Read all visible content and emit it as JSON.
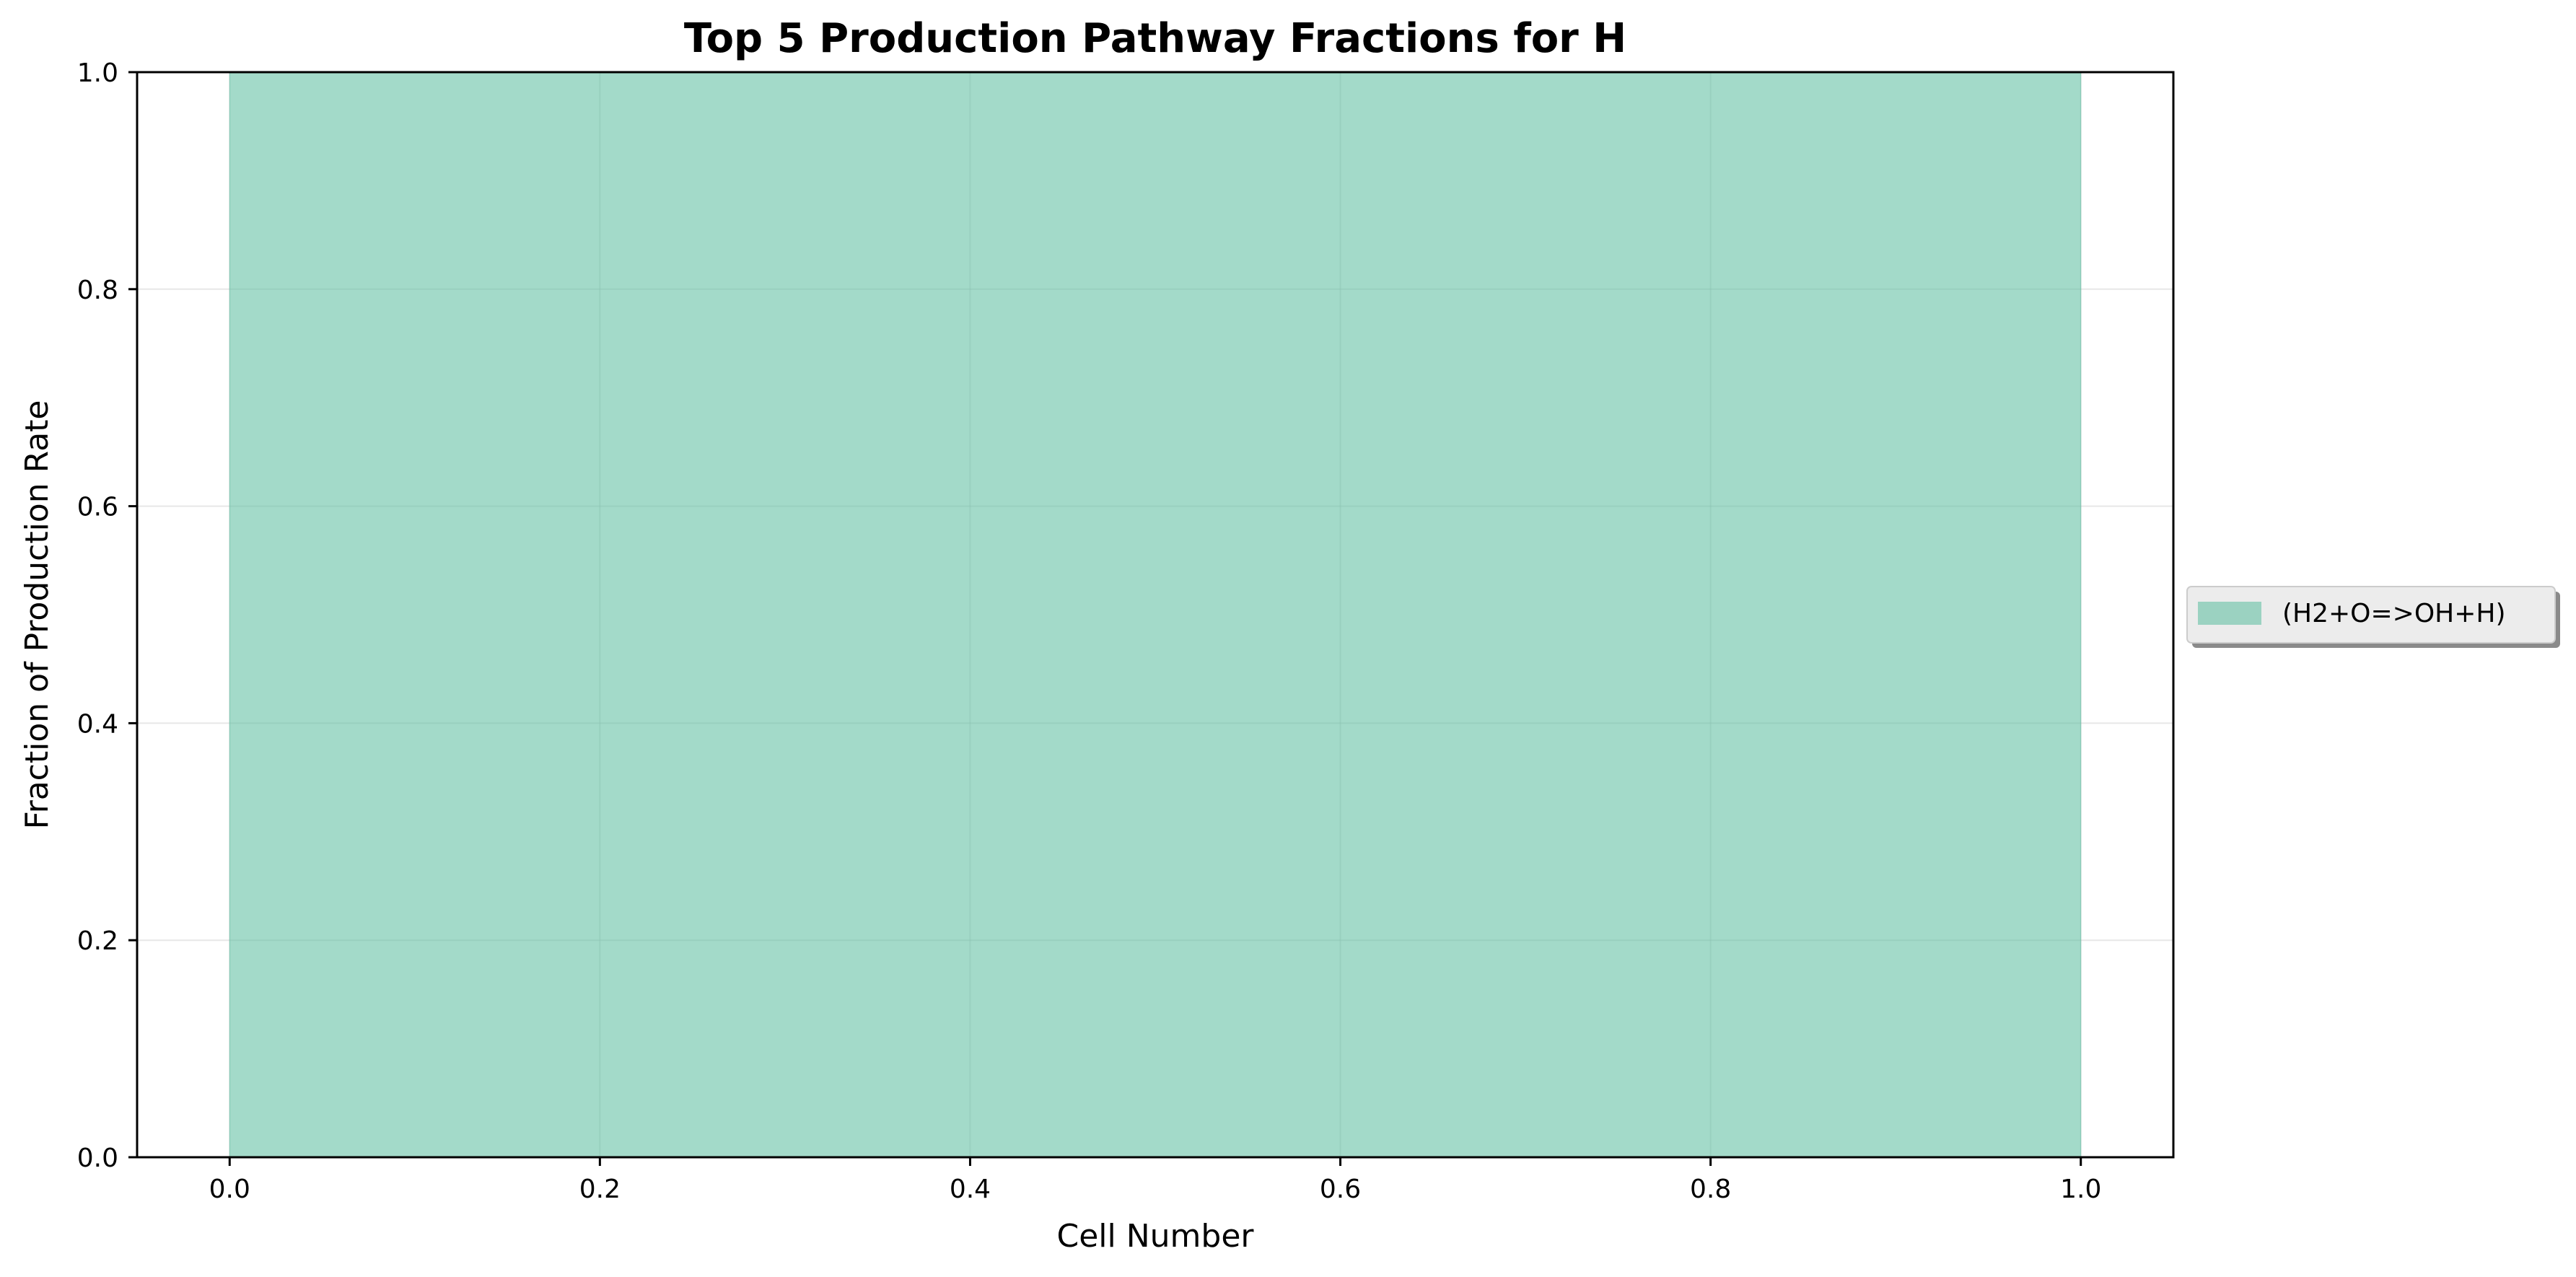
{
  "chart_data": {
    "type": "area",
    "title": "Top 5 Production Pathway Fractions for H",
    "xlabel": "Cell Number",
    "ylabel": "Fraction of Production Rate",
    "xlim": [
      -0.05,
      1.05
    ],
    "ylim": [
      0.0,
      1.0
    ],
    "x_ticks": [
      0.0,
      0.2,
      0.4,
      0.6,
      0.8,
      1.0
    ],
    "x_tick_labels": [
      "0.0",
      "0.2",
      "0.4",
      "0.6",
      "0.8",
      "1.0"
    ],
    "y_ticks": [
      0.0,
      0.2,
      0.4,
      0.6,
      0.8,
      1.0
    ],
    "y_tick_labels": [
      "0.0",
      "0.2",
      "0.4",
      "0.6",
      "0.8",
      "1.0"
    ],
    "grid": true,
    "stacked": true,
    "legend_position": "right-outside-center",
    "series": [
      {
        "name": "(H2+O=>OH+H)",
        "color": "#66c2a5",
        "x": [
          0.0,
          1.0
        ],
        "values": [
          1.0,
          1.0
        ]
      }
    ]
  }
}
